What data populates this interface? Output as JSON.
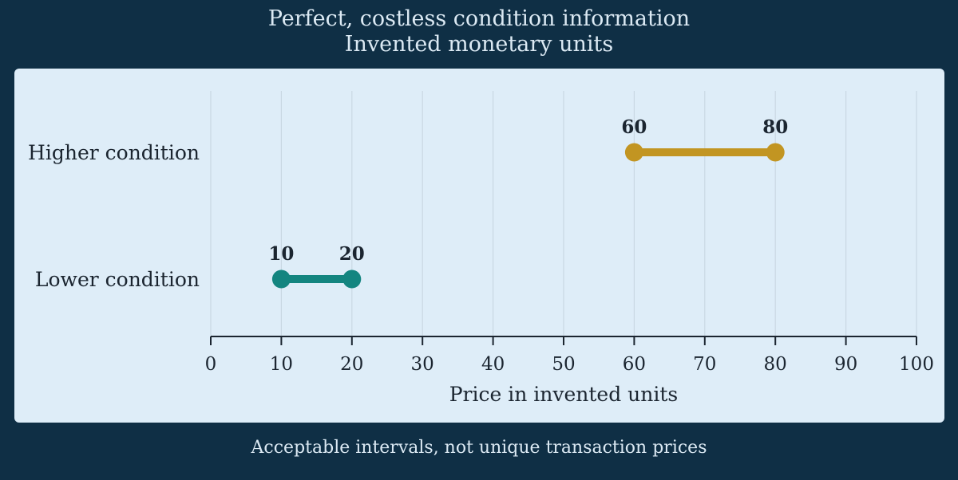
{
  "titles": {
    "line1": "Perfect, costless condition information",
    "line2": "Invented monetary units"
  },
  "note": "Acceptable intervals, not unique transaction prices",
  "colors": {
    "background": "#0f2f45",
    "panel": "#deedf8",
    "higher": "#c29522",
    "lower": "#138580",
    "text_dark": "#1b2530",
    "text_light": "#dbe9f3"
  },
  "chart_data": {
    "type": "range",
    "title": "Perfect, costless condition information",
    "subtitle": "Invented monetary units",
    "xlabel": "Price in invented units",
    "ylabel": "",
    "xlim": [
      0,
      100
    ],
    "xticks": [
      0,
      10,
      20,
      30,
      40,
      50,
      60,
      70,
      80,
      90,
      100
    ],
    "grid": true,
    "categories": [
      "Higher condition",
      "Lower condition"
    ],
    "series": [
      {
        "category": "Higher condition",
        "low": 60,
        "high": 80,
        "color": "#c29522"
      },
      {
        "category": "Lower condition",
        "low": 10,
        "high": 20,
        "color": "#138580"
      }
    ]
  }
}
